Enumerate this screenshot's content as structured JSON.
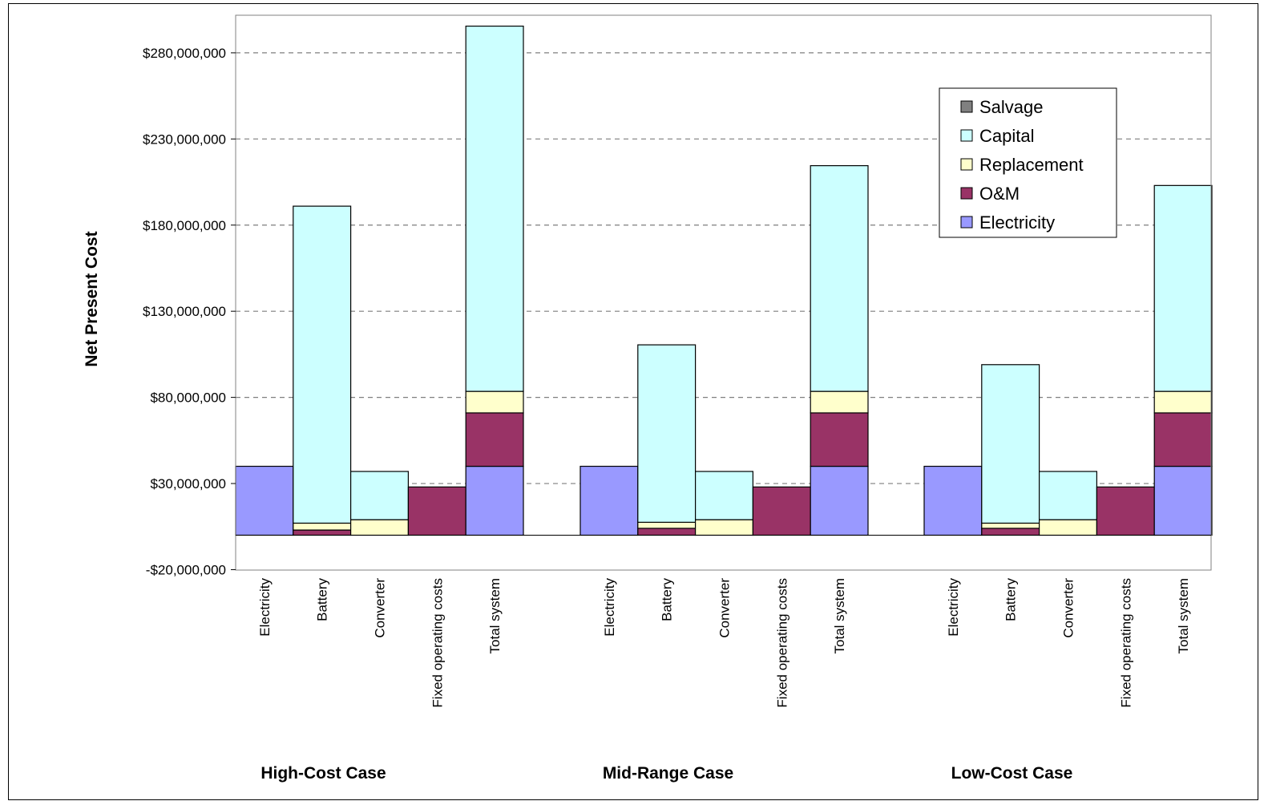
{
  "chart_data": {
    "type": "bar",
    "stacked": true,
    "title": "",
    "ylabel": "Net Present Cost",
    "xlabel": "",
    "ylim": [
      -20000000,
      300000000
    ],
    "yticks": [
      -20000000,
      30000000,
      80000000,
      130000000,
      180000000,
      230000000,
      280000000
    ],
    "ytick_labels": [
      "-$20,000,000",
      "$30,000,000",
      "$80,000,000",
      "$130,000,000",
      "$180,000,000",
      "$230,000,000",
      "$280,000,000"
    ],
    "grid": "horizontal dashed",
    "legend_position": "top-right",
    "groups": [
      "High-Cost Case",
      "Mid-Range Case",
      "Low-Cost Case"
    ],
    "categories": [
      "Electricity",
      "Battery",
      "Converter",
      "Fixed operating costs",
      "Total system"
    ],
    "series": [
      {
        "name": "Electricity",
        "color": "#9999ff",
        "values": [
          [
            40000000,
            0,
            0,
            0,
            40000000
          ],
          [
            40000000,
            0,
            0,
            0,
            40000000
          ],
          [
            40000000,
            0,
            0,
            0,
            40000000
          ]
        ]
      },
      {
        "name": "O&M",
        "color": "#993366",
        "values": [
          [
            0,
            3000000,
            0,
            28000000,
            31000000
          ],
          [
            0,
            4000000,
            0,
            28000000,
            31000000
          ],
          [
            0,
            4000000,
            0,
            28000000,
            31000000
          ]
        ]
      },
      {
        "name": "Replacement",
        "color": "#ffffcc",
        "values": [
          [
            0,
            4000000,
            9000000,
            0,
            12500000
          ],
          [
            0,
            3500000,
            9000000,
            0,
            12500000
          ],
          [
            0,
            3000000,
            9000000,
            0,
            12500000
          ]
        ]
      },
      {
        "name": "Capital",
        "color": "#ccffff",
        "values": [
          [
            0,
            184000000,
            28000000,
            0,
            212000000
          ],
          [
            0,
            103000000,
            28000000,
            0,
            131000000
          ],
          [
            0,
            92000000,
            28000000,
            0,
            119500000
          ]
        ]
      },
      {
        "name": "Salvage",
        "color": "#808080",
        "values": [
          [
            0,
            0,
            0,
            0,
            0
          ],
          [
            0,
            0,
            0,
            0,
            0
          ],
          [
            0,
            0,
            0,
            0,
            0
          ]
        ]
      }
    ],
    "legend_order": [
      "Salvage",
      "Capital",
      "Replacement",
      "O&M",
      "Electricity"
    ]
  }
}
